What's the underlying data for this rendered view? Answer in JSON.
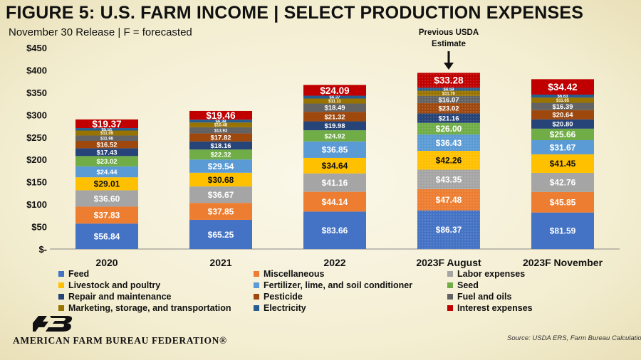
{
  "header": {
    "title": "FIGURE 5: U.S. FARM INCOME | SELECT PRODUCTION EXPENSES",
    "subtitle": "November 30 Release | F = forecasted"
  },
  "annotation": {
    "line1": "Previous USDA",
    "line2": "Estimate",
    "arrow_icon": "down-arrow-icon"
  },
  "footer": {
    "org": "AMERICAN FARM BUREAU FEDERATION®",
    "source": "Source: USDA ERS, Farm Bureau Calculations",
    "logo_icon": "fb-logo-icon"
  },
  "chart_data": {
    "type": "bar",
    "stacked": true,
    "categories": [
      "2020",
      "2021",
      "2022",
      "2023F August",
      "2023F November"
    ],
    "ylim": [
      0,
      450
    ],
    "yticks": [
      "$-",
      "$50",
      "$100",
      "$150",
      "$200",
      "$250",
      "$300",
      "$350",
      "$400",
      "$450"
    ],
    "grid": false,
    "highlighted_category": "2023F August",
    "series": [
      {
        "name": "Feed",
        "color": "#4472c4",
        "values": [
          56.84,
          65.25,
          83.66,
          86.37,
          81.59
        ],
        "labels": [
          "$56.84",
          "$65.25",
          "$83.66",
          "$86.37",
          "$81.59"
        ]
      },
      {
        "name": "Miscellaneous",
        "color": "#ed7d31",
        "values": [
          37.83,
          37.85,
          44.14,
          47.48,
          45.85
        ],
        "labels": [
          "$37.83",
          "$37.85",
          "$44.14",
          "$47.48",
          "$45.85"
        ]
      },
      {
        "name": "Labor expenses",
        "color": "#a5a5a5",
        "values": [
          36.6,
          36.67,
          41.16,
          43.35,
          42.76
        ],
        "labels": [
          "$36.60",
          "$36.67",
          "$41.16",
          "$43.35",
          "$42.76"
        ]
      },
      {
        "name": "Livestock and poultry",
        "color": "#ffc000",
        "values": [
          29.01,
          30.68,
          34.64,
          42.26,
          41.45
        ],
        "labels": [
          "$29.01",
          "$30.68",
          "$34.64",
          "$42.26",
          "$41.45"
        ]
      },
      {
        "name": "Fertilizer, lime, and soil conditioner",
        "color": "#5b9bd5",
        "values": [
          24.44,
          29.54,
          36.85,
          36.43,
          31.67
        ],
        "labels": [
          "$24.44",
          "$29.54",
          "$36.85",
          "$36.43",
          "$31.67"
        ]
      },
      {
        "name": "Seed",
        "color": "#70ad47",
        "values": [
          23.02,
          22.32,
          24.92,
          26.0,
          25.66
        ],
        "labels": [
          "$23.02",
          "$22.32",
          "$24.92",
          "$26.00",
          "$25.66"
        ]
      },
      {
        "name": "Repair and maintenance",
        "color": "#264478",
        "values": [
          17.43,
          18.16,
          19.98,
          21.16,
          20.8
        ],
        "labels": [
          "$17.43",
          "$18.16",
          "$19.98",
          "$21.16",
          "$20.80"
        ]
      },
      {
        "name": "Pesticide",
        "color": "#9e480e",
        "values": [
          16.52,
          17.82,
          21.32,
          23.02,
          20.64
        ],
        "labels": [
          "$16.52",
          "$17.82",
          "$21.32",
          "$23.02",
          "$20.64"
        ]
      },
      {
        "name": "Fuel and oils",
        "color": "#636363",
        "values": [
          11.98,
          13.93,
          18.49,
          16.07,
          16.39
        ],
        "labels": [
          "$11.98",
          "$13.93",
          "$18.49",
          "$16.07",
          "$16.39"
        ]
      },
      {
        "name": "Marketing, storage, and transportation",
        "color": "#997300",
        "values": [
          11.09,
          10.48,
          11.11,
          11.7,
          11.65
        ],
        "labels": [
          "$11.09",
          "$10.48",
          "$11.11",
          "$11.70",
          "$11.65"
        ]
      },
      {
        "name": "Electricity",
        "color": "#255e91",
        "values": [
          5.51,
          6.39,
          6.37,
          6.59,
          6.63
        ],
        "labels": [
          "$5.51",
          "$6.39",
          "$6.37",
          "$6.59",
          "$6.63"
        ]
      },
      {
        "name": "Interest expenses",
        "color": "#c00000",
        "values": [
          19.37,
          19.46,
          24.09,
          33.28,
          34.42
        ],
        "labels": [
          "$19.37",
          "$19.46",
          "$24.09",
          "$33.28",
          "$34.42"
        ]
      }
    ],
    "legend_position": "bottom"
  }
}
